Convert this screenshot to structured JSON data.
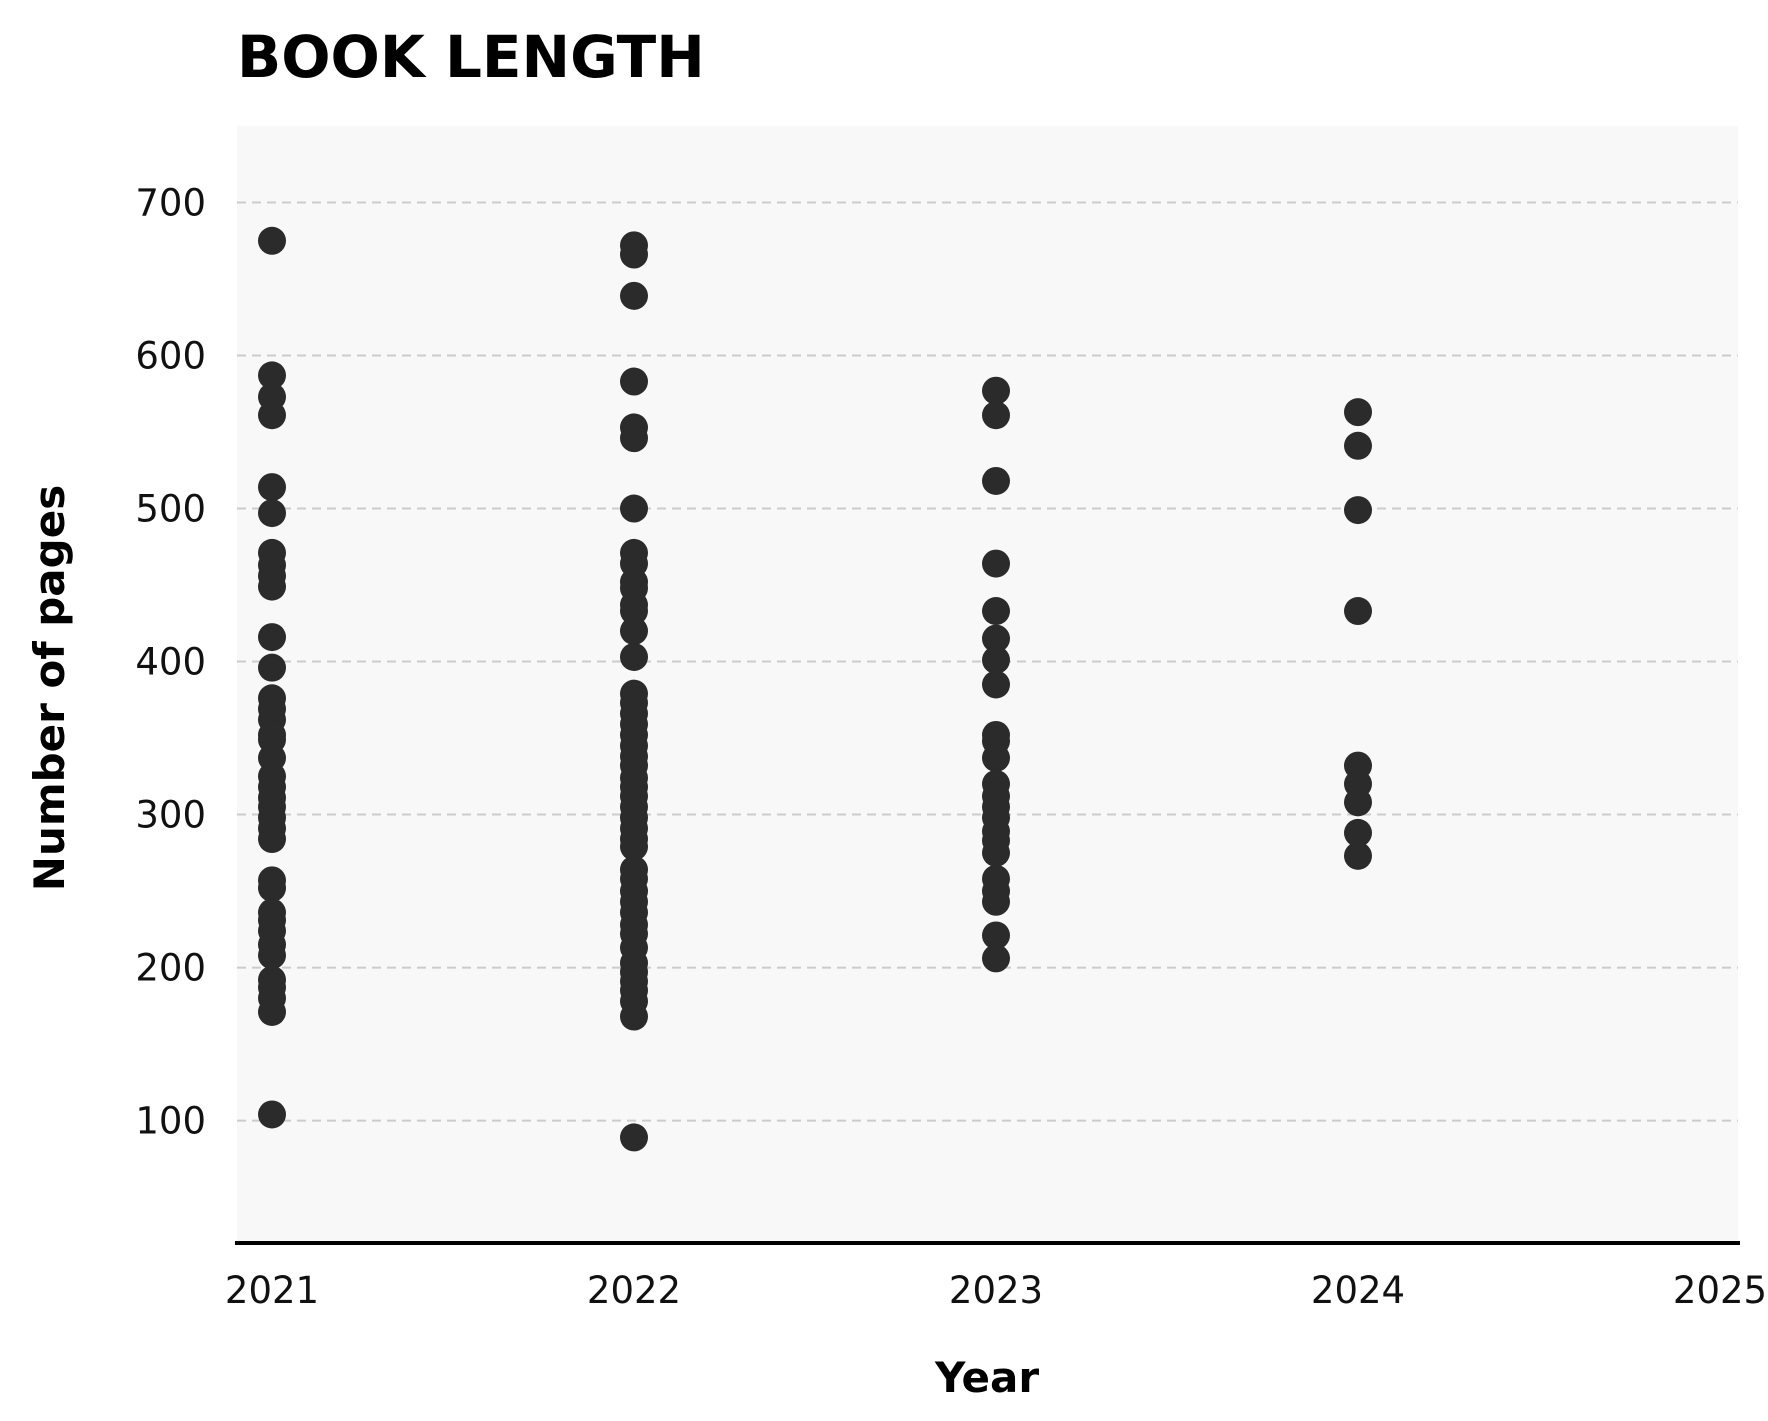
{
  "chart_data": {
    "type": "scatter",
    "title": "BOOK LENGTH",
    "xlabel": "Year",
    "ylabel": "Number of pages",
    "xlim": [
      2020.9,
      2025
    ],
    "ylim": [
      20,
      750
    ],
    "x_ticks": [
      "2021",
      "2022",
      "2023",
      "2024",
      "2025"
    ],
    "y_ticks": [
      "100",
      "200",
      "300",
      "400",
      "500",
      "600",
      "700"
    ],
    "grid": "y-dashed",
    "colors": {
      "point": "#2b2b2b",
      "plot_background": "#f8f8f8",
      "grid": "#cccccc",
      "axis": "#000000"
    },
    "series": [
      {
        "x": 2021,
        "values": [
          675,
          587,
          573,
          561,
          514,
          497,
          471,
          463,
          456,
          449,
          416,
          396,
          376,
          369,
          362,
          352,
          349,
          337,
          325,
          318,
          311,
          305,
          298,
          291,
          284,
          257,
          252,
          236,
          231,
          224,
          215,
          208,
          192,
          187,
          180,
          171,
          104
        ]
      },
      {
        "x": 2022,
        "values": [
          672,
          666,
          639,
          583,
          553,
          546,
          500,
          471,
          464,
          452,
          448,
          437,
          433,
          420,
          403,
          379,
          373,
          366,
          359,
          352,
          345,
          338,
          332,
          324,
          318,
          312,
          305,
          298,
          291,
          284,
          279,
          264,
          258,
          250,
          243,
          236,
          228,
          222,
          213,
          203,
          197,
          191,
          185,
          178,
          168,
          89
        ]
      },
      {
        "x": 2023,
        "values": [
          577,
          561,
          518,
          464,
          433,
          415,
          401,
          385,
          352,
          348,
          337,
          320,
          312,
          305,
          298,
          289,
          283,
          275,
          258,
          250,
          243,
          221,
          206
        ]
      },
      {
        "x": 2024,
        "values": [
          563,
          541,
          499,
          433,
          332,
          320,
          308,
          288,
          273
        ]
      }
    ]
  }
}
